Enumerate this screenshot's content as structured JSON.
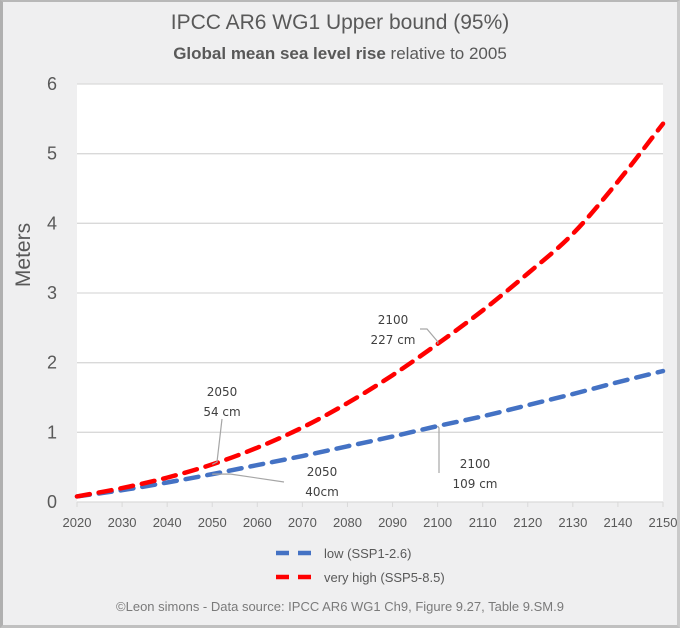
{
  "header": {
    "title": "IPCC AR6 WG1 Upper bound (95%)",
    "subtitle_bold": "Global mean sea level rise",
    "subtitle_rest": " relative to 2005"
  },
  "footer": {
    "credit": "©Leon simons - Data source: IPCC AR6 WG1 Ch9, Figure 9.27, Table 9.SM.9"
  },
  "chart_data": {
    "type": "line",
    "title": "IPCC AR6 WG1 Upper bound (95%)",
    "subtitle": "Global mean sea level rise relative to 2005",
    "xlabel": "",
    "ylabel": "Meters",
    "x": [
      2020,
      2030,
      2040,
      2050,
      2060,
      2070,
      2080,
      2090,
      2100,
      2110,
      2120,
      2130,
      2140,
      2150
    ],
    "xlim": [
      2020,
      2150
    ],
    "ylim": [
      0,
      6
    ],
    "xticks": [
      "2020",
      "2030",
      "2040",
      "2050",
      "2060",
      "2070",
      "2080",
      "2090",
      "2100",
      "2110",
      "2120",
      "2130",
      "2140",
      "2150"
    ],
    "yticks": [
      "0",
      "1",
      "2",
      "3",
      "4",
      "5",
      "6"
    ],
    "grid": true,
    "legend_position": "bottom-center",
    "series": [
      {
        "name": "low (SSP1-2.6)",
        "color": "#4472c4",
        "style": "dashed",
        "values": [
          0.08,
          0.17,
          0.28,
          0.4,
          0.53,
          0.66,
          0.8,
          0.94,
          1.09,
          1.23,
          1.39,
          1.55,
          1.72,
          1.88
        ]
      },
      {
        "name": "very high (SSP5-8.5)",
        "color": "#ff0000",
        "style": "dashed",
        "values": [
          0.08,
          0.2,
          0.35,
          0.54,
          0.78,
          1.07,
          1.42,
          1.82,
          2.27,
          2.75,
          3.28,
          3.85,
          4.6,
          5.43
        ]
      }
    ],
    "annotations": [
      {
        "series": "very high (SSP5-8.5)",
        "x": 2050,
        "y": 0.54,
        "line1": "2050",
        "line2": "54 cm"
      },
      {
        "series": "low (SSP1-2.6)",
        "x": 2050,
        "y": 0.4,
        "line1": "2050",
        "line2": "40cm"
      },
      {
        "series": "very high (SSP5-8.5)",
        "x": 2100,
        "y": 2.27,
        "line1": "2100",
        "line2": "227 cm"
      },
      {
        "series": "low (SSP1-2.6)",
        "x": 2100,
        "y": 1.09,
        "line1": "2100",
        "line2": "109 cm"
      }
    ]
  }
}
